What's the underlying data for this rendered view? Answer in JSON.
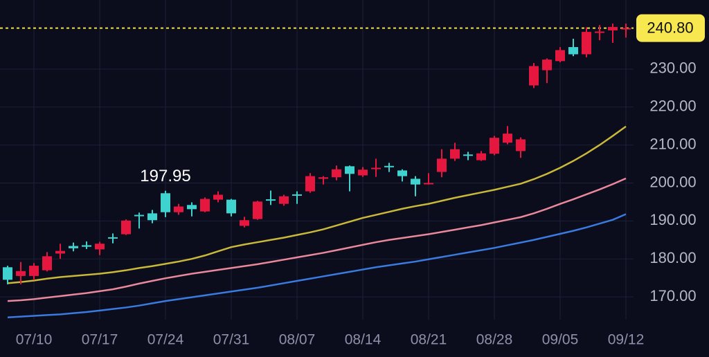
{
  "chart_data": {
    "type": "candlestick",
    "categories": [
      null,
      null,
      "07/10",
      null,
      null,
      null,
      null,
      "07/17",
      null,
      null,
      null,
      null,
      "07/24",
      null,
      null,
      null,
      null,
      "07/31",
      null,
      null,
      null,
      null,
      "08/07",
      null,
      null,
      null,
      null,
      "08/14",
      null,
      null,
      null,
      null,
      "08/21",
      null,
      null,
      null,
      null,
      "08/28",
      null,
      null,
      null,
      null,
      "09/05",
      null,
      null,
      null,
      null,
      "09/12"
    ],
    "open": [
      177.8,
      175.5,
      175.5,
      177.0,
      181.4,
      183.4,
      183.6,
      182.5,
      185.7,
      186.5,
      191.6,
      192.0,
      197.3,
      192.3,
      194.2,
      192.5,
      195.6,
      195.6,
      188.7,
      190.5,
      195.7,
      194.5,
      197.0,
      197.8,
      201.1,
      201.5,
      204.4,
      202.0,
      203.8,
      204.5,
      203.3,
      201.1,
      199.8,
      202.9,
      206.4,
      207.5,
      206.0,
      207.7,
      210.6,
      208.4,
      225.7,
      229.7,
      232.1,
      235.8,
      233.9,
      239.7,
      240.2,
      240.5
    ],
    "high": [
      178.2,
      179.2,
      178.9,
      181.8,
      184.0,
      184.3,
      184.6,
      184.5,
      186.7,
      190.4,
      192.2,
      192.9,
      197.95,
      194.5,
      194.9,
      196.2,
      197.8,
      195.8,
      191.1,
      195.3,
      198.0,
      196.9,
      197.8,
      202.6,
      201.8,
      204.6,
      204.6,
      204.2,
      206.4,
      205.3,
      203.6,
      201.8,
      202.6,
      208.9,
      210.6,
      208.2,
      208.4,
      212.4,
      215.0,
      212.0,
      231.6,
      232.8,
      235.8,
      238.0,
      241.0,
      241.6,
      242.0,
      242.0
    ],
    "low": [
      173.3,
      173.3,
      174.4,
      176.7,
      180.0,
      182.0,
      182.6,
      181.0,
      184.1,
      186.3,
      188.0,
      189.4,
      191.0,
      191.6,
      191.2,
      192.3,
      194.9,
      191.2,
      188.3,
      190.3,
      194.2,
      194.0,
      194.5,
      197.4,
      199.6,
      200.7,
      197.8,
      201.6,
      201.6,
      202.9,
      200.4,
      196.5,
      199.6,
      201.5,
      205.8,
      206.0,
      205.8,
      207.3,
      210.2,
      206.6,
      225.0,
      226.3,
      231.8,
      233.4,
      233.1,
      237.6,
      236.9,
      238.3
    ],
    "close": [
      174.5,
      176.8,
      178.2,
      180.7,
      182.1,
      182.8,
      183.2,
      184.0,
      185.4,
      190.1,
      191.4,
      190.2,
      192.3,
      193.8,
      193.1,
      195.8,
      196.9,
      192.0,
      190.2,
      195.1,
      195.4,
      196.5,
      196.7,
      201.8,
      201.5,
      203.6,
      202.4,
      203.5,
      204.0,
      204.2,
      201.8,
      199.6,
      200.0,
      206.4,
      208.9,
      207.3,
      207.8,
      211.9,
      213.0,
      211.5,
      230.8,
      232.5,
      235.0,
      233.9,
      239.8,
      239.9,
      241.1,
      240.8
    ],
    "up_color": "#e5173f",
    "down_color": "#3fd3cf",
    "lines": [
      {
        "color": "#c9b93a",
        "values": [
          173.6,
          173.9,
          174.3,
          174.8,
          175.2,
          175.5,
          175.8,
          176.1,
          176.5,
          177.0,
          177.6,
          178.1,
          178.7,
          179.3,
          180.0,
          180.9,
          182.0,
          183.1,
          183.8,
          184.4,
          185.0,
          185.6,
          186.3,
          187.0,
          187.8,
          188.8,
          189.8,
          190.8,
          191.6,
          192.4,
          193.2,
          193.9,
          194.5,
          195.3,
          196.1,
          196.8,
          197.5,
          198.2,
          199.0,
          199.8,
          201.0,
          202.4,
          204.0,
          205.8,
          207.8,
          210.0,
          212.4,
          214.9
        ]
      },
      {
        "color": "#e9899b",
        "values": [
          168.9,
          169.1,
          169.4,
          169.8,
          170.2,
          170.6,
          171.0,
          171.5,
          172.0,
          172.7,
          173.5,
          174.2,
          174.9,
          175.5,
          176.1,
          176.6,
          177.1,
          177.6,
          178.1,
          178.6,
          179.2,
          179.8,
          180.4,
          181.0,
          181.6,
          182.3,
          183.0,
          183.7,
          184.4,
          185.0,
          185.5,
          186.0,
          186.5,
          187.1,
          187.7,
          188.3,
          188.9,
          189.6,
          190.3,
          191.0,
          192.0,
          193.2,
          194.5,
          195.7,
          197.0,
          198.3,
          199.7,
          201.2
        ]
      },
      {
        "color": "#3a7be0",
        "values": [
          164.6,
          164.8,
          165.0,
          165.2,
          165.4,
          165.7,
          166.0,
          166.4,
          166.8,
          167.2,
          167.7,
          168.3,
          168.9,
          169.4,
          169.9,
          170.4,
          170.9,
          171.4,
          171.9,
          172.4,
          173.0,
          173.6,
          174.2,
          174.8,
          175.4,
          176.0,
          176.6,
          177.2,
          177.8,
          178.3,
          178.8,
          179.3,
          179.9,
          180.5,
          181.1,
          181.7,
          182.3,
          182.9,
          183.6,
          184.3,
          185.0,
          185.8,
          186.6,
          187.4,
          188.3,
          189.3,
          190.3,
          191.8
        ]
      }
    ],
    "max_label": 197.95,
    "last_price": {
      "value": 240.8,
      "label": "240.80"
    },
    "ylim": [
      164,
      248.2
    ],
    "yticks": [
      {
        "value": 170,
        "label": "170.00"
      },
      {
        "value": 180,
        "label": "180.00"
      },
      {
        "value": 190,
        "label": "190.00"
      },
      {
        "value": 200,
        "label": "200.00"
      },
      {
        "value": 210,
        "label": "210.00"
      },
      {
        "value": 220,
        "label": "220.00"
      },
      {
        "value": 230,
        "label": "230.00"
      }
    ],
    "grid": true
  }
}
